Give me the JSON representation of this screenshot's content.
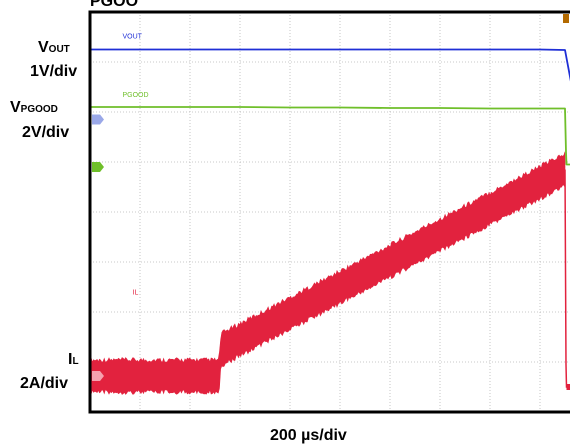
{
  "chart_data": {
    "type": "line",
    "title": "PGOO",
    "xlabel": "200 µs/div",
    "grid": true,
    "divisions": {
      "x": 10,
      "y": 8
    },
    "x_unit": "div",
    "xlim": [
      0,
      10
    ],
    "ylim": [
      0,
      8
    ],
    "channels": [
      {
        "id": "vout",
        "label_main": "V",
        "label_sub": "OUT",
        "scale": "1V/div",
        "trace_label": "VOUT",
        "marker": "",
        "color": "#1f2fd6",
        "x": [
          0,
          1,
          2,
          3,
          4,
          5,
          6,
          7,
          8,
          9,
          9.5,
          9.62,
          9.72,
          9.82,
          9.95,
          10
        ],
        "y": [
          7.25,
          7.25,
          7.25,
          7.25,
          7.25,
          7.25,
          7.25,
          7.25,
          7.25,
          7.25,
          7.24,
          6.6,
          5.9,
          5.75,
          5.86,
          5.88
        ]
      },
      {
        "id": "pgood",
        "label_main": "V",
        "label_sub": "PGOOD",
        "scale": "2V/div",
        "trace_label": "PGOOD",
        "marker": "",
        "color": "#6fbf2a",
        "x": [
          0,
          1,
          2,
          3,
          4,
          5,
          6,
          7,
          8,
          9,
          9.5,
          9.52,
          9.53,
          10
        ],
        "y": [
          6.1,
          6.1,
          6.1,
          6.1,
          6.09,
          6.09,
          6.08,
          6.08,
          6.07,
          6.07,
          6.07,
          5.2,
          4.95,
          4.95
        ]
      },
      {
        "id": "il",
        "label_main": "I",
        "label_sub": "L",
        "scale": "2A/div",
        "trace_label": "IL",
        "marker": "",
        "color": "#e2223e",
        "ripple": 0.32,
        "x": [
          0,
          1,
          2,
          2.58,
          2.62,
          2.72,
          9.5,
          9.52,
          9.53,
          10
        ],
        "y": [
          0.72,
          0.72,
          0.72,
          0.72,
          1.25,
          1.3,
          4.85,
          0.95,
          0.5,
          0.5
        ]
      }
    ],
    "extra_markers": [
      {
        "id": "ch-marker-2",
        "text": "",
        "color": "#9aa8e8",
        "y": 5.85
      },
      {
        "id": "ch-marker-3",
        "text": "",
        "color": "#6fbf2a",
        "y": 4.9
      }
    ],
    "trigger_marker_color": "#b36a00"
  }
}
